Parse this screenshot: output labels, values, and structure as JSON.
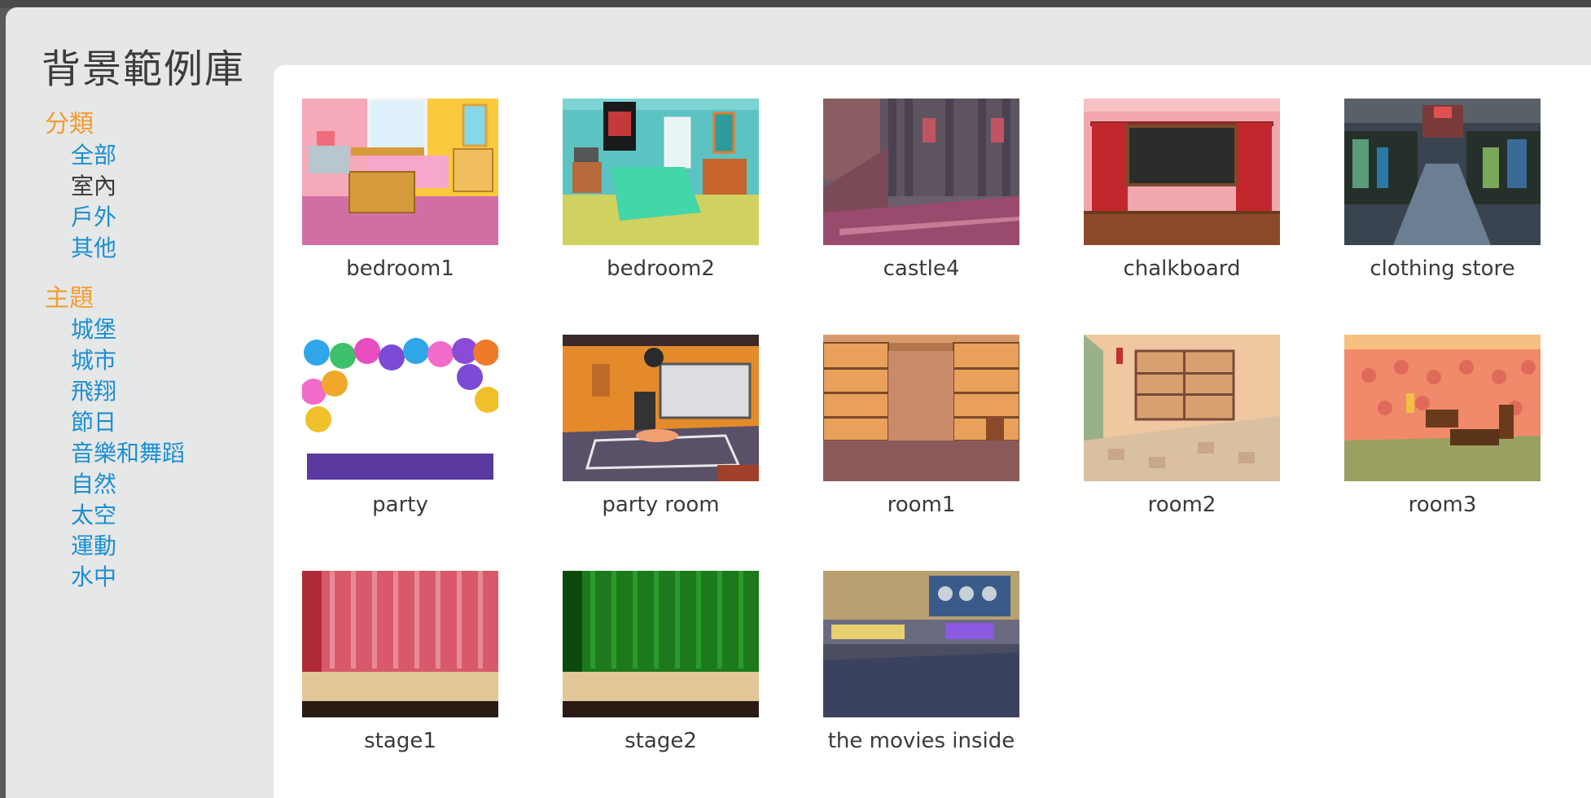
{
  "dialog": {
    "title": "背景範例庫"
  },
  "sidebar": {
    "category_header": "分類",
    "categories": [
      {
        "label": "全部",
        "active": false
      },
      {
        "label": "室內",
        "active": true
      },
      {
        "label": "戶外",
        "active": false
      },
      {
        "label": "其他",
        "active": false
      }
    ],
    "theme_header": "主題",
    "themes": [
      {
        "label": "城堡"
      },
      {
        "label": "城市"
      },
      {
        "label": "飛翔"
      },
      {
        "label": "節日"
      },
      {
        "label": "音樂和舞蹈"
      },
      {
        "label": "自然"
      },
      {
        "label": "太空"
      },
      {
        "label": "運動"
      },
      {
        "label": "水中"
      }
    ]
  },
  "backgrounds": [
    {
      "label": "bedroom1",
      "icon": "bedroom1-thumbnail"
    },
    {
      "label": "bedroom2",
      "icon": "bedroom2-thumbnail"
    },
    {
      "label": "castle4",
      "icon": "castle4-thumbnail"
    },
    {
      "label": "chalkboard",
      "icon": "chalkboard-thumbnail"
    },
    {
      "label": "clothing store",
      "icon": "clothing-store-thumbnail"
    },
    {
      "label": "party",
      "icon": "party-thumbnail"
    },
    {
      "label": "party room",
      "icon": "party-room-thumbnail"
    },
    {
      "label": "room1",
      "icon": "room1-thumbnail"
    },
    {
      "label": "room2",
      "icon": "room2-thumbnail"
    },
    {
      "label": "room3",
      "icon": "room3-thumbnail"
    },
    {
      "label": "stage1",
      "icon": "stage1-thumbnail"
    },
    {
      "label": "stage2",
      "icon": "stage2-thumbnail"
    },
    {
      "label": "the movies inside",
      "icon": "the-movies-inside-thumbnail"
    }
  ],
  "colors": {
    "category_header": "#f39c32",
    "link": "#1b8fd2",
    "active_item": "#3a3a3a",
    "panel_background": "#e6e7e7",
    "content_background": "#ffffff"
  }
}
